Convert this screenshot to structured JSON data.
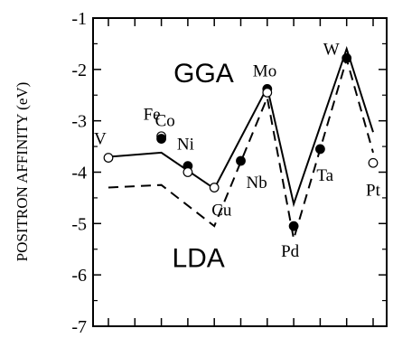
{
  "chart_data": {
    "type": "line",
    "ylabel": "POSITRON AFFINITY (eV)",
    "xlabel": "",
    "ylim": [
      -7,
      -1
    ],
    "yticks": [
      -1,
      -2,
      -3,
      -4,
      -5,
      -6,
      -7
    ],
    "ytick_labels": [
      "-1",
      "-2",
      "-3",
      "-4",
      "-5",
      "-6",
      "-7"
    ],
    "x_positions": [
      1,
      2,
      3,
      4,
      5,
      6,
      7,
      8,
      9,
      10,
      11
    ],
    "series": [
      {
        "name": "GGA",
        "style": "solid",
        "points": [
          [
            1,
            -3.7
          ],
          [
            3,
            -3.62
          ],
          [
            5,
            -4.32
          ],
          [
            7,
            -2.35
          ],
          [
            8,
            -4.62
          ],
          [
            10,
            -1.6
          ],
          [
            11,
            -3.22
          ]
        ]
      },
      {
        "name": "LDA",
        "style": "dashed",
        "points": [
          [
            1,
            -4.3
          ],
          [
            3,
            -4.25
          ],
          [
            5,
            -5.05
          ],
          [
            7,
            -2.55
          ],
          [
            8,
            -5.3
          ],
          [
            10,
            -1.8
          ],
          [
            11,
            -3.62
          ]
        ]
      }
    ],
    "points": [
      {
        "label": "V",
        "x": 1,
        "y": -3.72,
        "filled": false
      },
      {
        "label": "Fe",
        "x": 3,
        "y": -3.3,
        "filled": false
      },
      {
        "label": "Co",
        "x": 3,
        "y": -3.35,
        "filled": true
      },
      {
        "label": "Ni",
        "x": 4,
        "y": -3.88,
        "filled": true
      },
      {
        "label": "",
        "x": 4,
        "y": -4.0,
        "filled": false
      },
      {
        "label": "Cu",
        "x": 5,
        "y": -4.3,
        "filled": false
      },
      {
        "label": "Nb",
        "x": 6,
        "y": -3.78,
        "filled": true
      },
      {
        "label": "Mo",
        "x": 7,
        "y": -2.38,
        "filled": true
      },
      {
        "label": "",
        "x": 7,
        "y": -2.45,
        "filled": false
      },
      {
        "label": "Pd",
        "x": 8,
        "y": -5.05,
        "filled": true
      },
      {
        "label": "Ta",
        "x": 9,
        "y": -3.55,
        "filled": true
      },
      {
        "label": "W",
        "x": 10,
        "y": -1.78,
        "filled": true
      },
      {
        "label": "Pt",
        "x": 11,
        "y": -3.82,
        "filled": false
      }
    ],
    "annotations": [
      {
        "text": "GGA",
        "x": 4.6,
        "y": -2.25
      },
      {
        "text": "LDA",
        "x": 4.4,
        "y": -5.85
      }
    ],
    "grid": false,
    "legend": "none"
  }
}
